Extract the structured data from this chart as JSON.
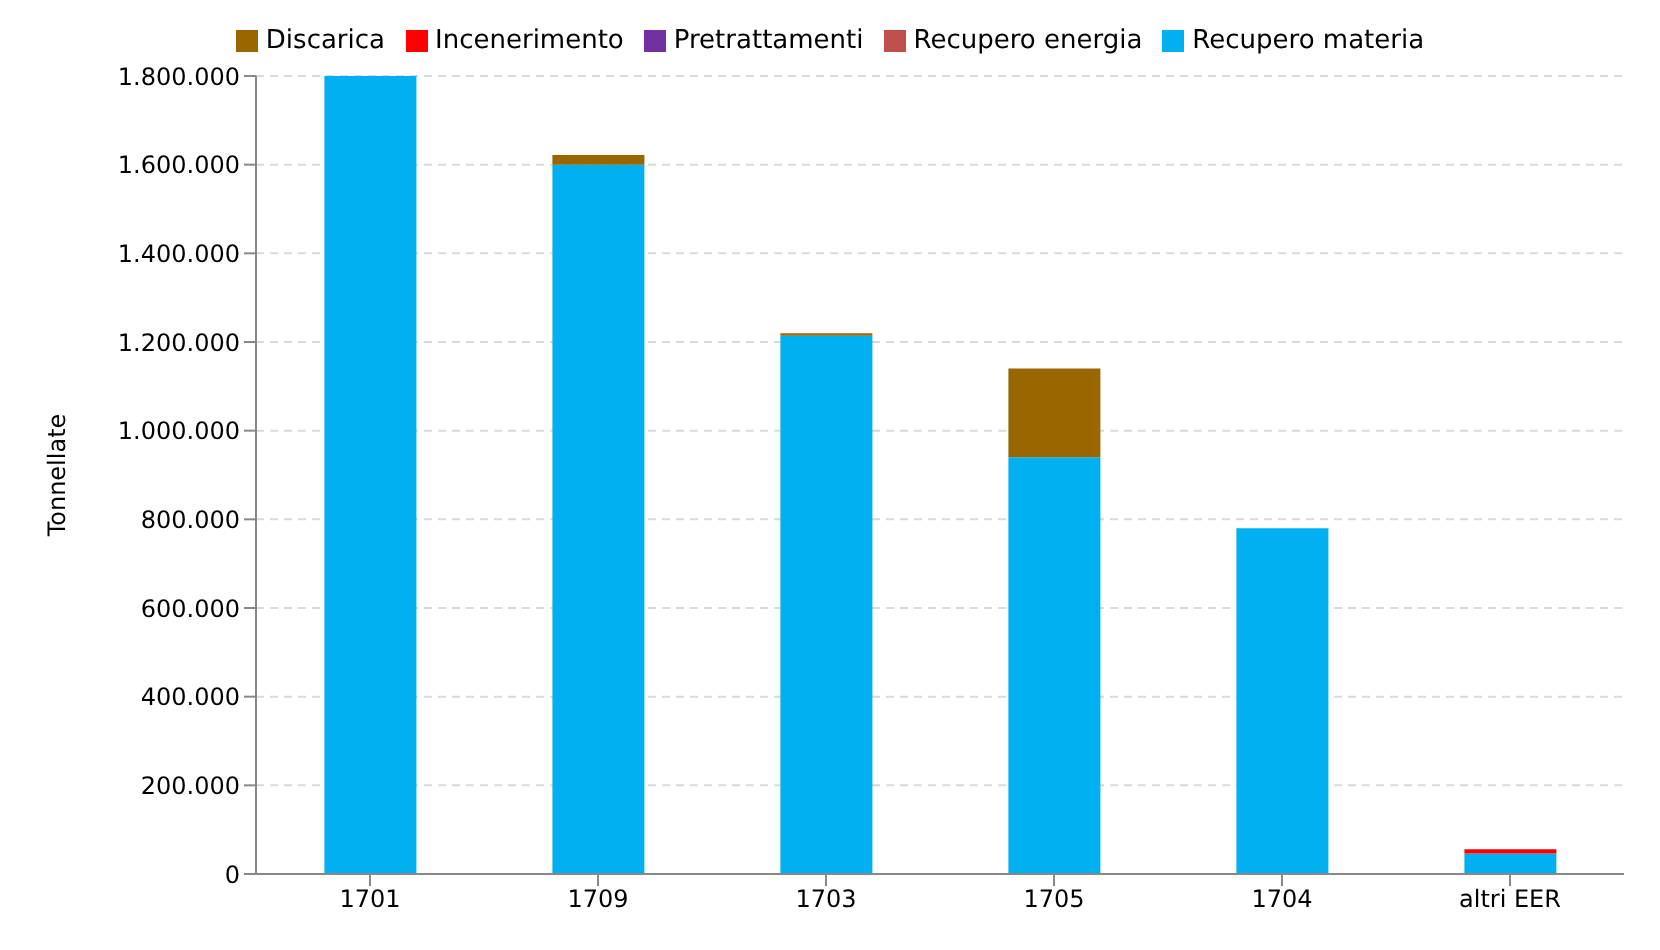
{
  "chart_data": {
    "type": "bar",
    "stacked": true,
    "ylabel": "Tonnellate",
    "categories": [
      "1701",
      "1709",
      "1703",
      "1705",
      "1704",
      "altri EER"
    ],
    "series": [
      {
        "name": "Recupero materia",
        "color": "#00b0f0",
        "values": [
          1800000,
          1600000,
          1214000,
          940000,
          780000,
          46000
        ]
      },
      {
        "name": "Recupero energia",
        "color": "#c0504d",
        "values": [
          0,
          0,
          0,
          0,
          0,
          0
        ]
      },
      {
        "name": "Pretrattamenti",
        "color": "#7030a0",
        "values": [
          0,
          0,
          0,
          0,
          0,
          0
        ]
      },
      {
        "name": "Incenerimento",
        "color": "#ff0000",
        "values": [
          0,
          0,
          0,
          0,
          0,
          10000
        ]
      },
      {
        "name": "Discarica",
        "color": "#996600",
        "values": [
          0,
          22000,
          6000,
          200000,
          0,
          0
        ]
      }
    ],
    "ylim": [
      0,
      1800000
    ],
    "yticks": [
      {
        "value": 0,
        "label": "0"
      },
      {
        "value": 200000,
        "label": "200.000"
      },
      {
        "value": 400000,
        "label": "400.000"
      },
      {
        "value": 600000,
        "label": "600.000"
      },
      {
        "value": 800000,
        "label": "800.000"
      },
      {
        "value": 1000000,
        "label": "1.000.000"
      },
      {
        "value": 1200000,
        "label": "1.200.000"
      },
      {
        "value": 1400000,
        "label": "1.400.000"
      },
      {
        "value": 1600000,
        "label": "1.600.000"
      },
      {
        "value": 1800000,
        "label": "1.800.000"
      }
    ],
    "grid": "y",
    "legend": "top"
  }
}
